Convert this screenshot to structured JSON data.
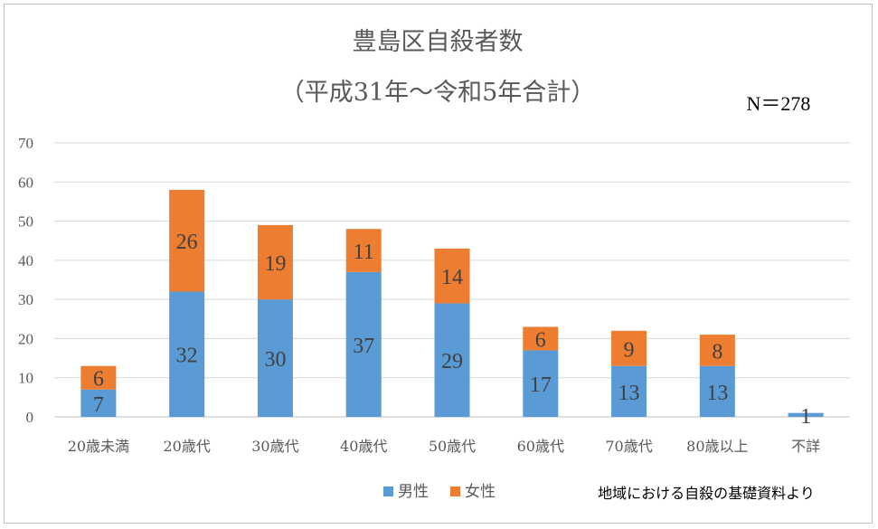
{
  "chart_data": {
    "type": "bar",
    "stacked": true,
    "title": "豊島区自殺者数",
    "subtitle": "（平成31年～令和5年合計）",
    "annotation": "N＝278",
    "categories": [
      "20歳未満",
      "20歳代",
      "30歳代",
      "40歳代",
      "50歳代",
      "60歳代",
      "70歳代",
      "80歳以上",
      "不詳"
    ],
    "series": [
      {
        "name": "男性",
        "color": "#5b9bd5",
        "values": [
          7,
          32,
          30,
          37,
          29,
          17,
          13,
          13,
          1
        ]
      },
      {
        "name": "女性",
        "color": "#ed7d31",
        "values": [
          6,
          26,
          19,
          11,
          14,
          6,
          9,
          8,
          0
        ]
      }
    ],
    "ylim": [
      0,
      70
    ],
    "yticks": [
      0,
      10,
      20,
      30,
      40,
      50,
      60,
      70
    ],
    "grid": true,
    "legend_position": "bottom",
    "source_note": "地域における自殺の基礎資料より"
  }
}
